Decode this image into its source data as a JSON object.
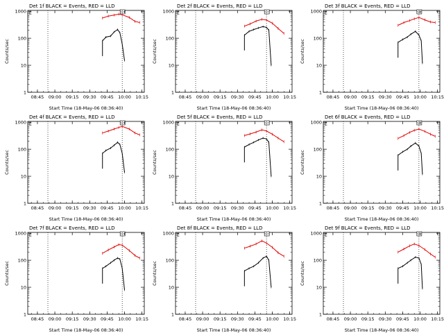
{
  "figure": {
    "xlabel": "Start Time (18-May-06 08:36:40)",
    "ylabel": "Counts/sec",
    "legend_marker": "E"
  },
  "colors": {
    "events": "#000000",
    "lld": "#e00000",
    "axes": "#000000"
  },
  "chart_data": [
    {
      "type": "line",
      "title": "Det 1f BLACK = Events, RED = LLD",
      "x_ticks": [
        "08:45",
        "09:00",
        "09:15",
        "09:30",
        "09:45",
        "10:00",
        "10:15"
      ],
      "y_ticks": [
        "1",
        "10",
        "100",
        "1000"
      ],
      "yscale": "log",
      "ylim": [
        1,
        1000
      ],
      "series": [
        {
          "name": "Events",
          "x": [
            "09:41",
            "09:44",
            "09:48",
            "09:51",
            "09:54",
            "09:56",
            "09:58",
            "10:00"
          ],
          "y": [
            80,
            110,
            120,
            170,
            210,
            160,
            60,
            15
          ]
        },
        {
          "name": "LLD",
          "x": [
            "09:41",
            "09:46",
            "09:51",
            "09:55",
            "09:58",
            "10:04",
            "10:09",
            "10:13"
          ],
          "y": [
            560,
            660,
            720,
            780,
            740,
            590,
            420,
            380
          ]
        }
      ]
    },
    {
      "type": "line",
      "title": "Det 2f BLACK = Events, RED = LLD",
      "x_ticks": [
        "08:45",
        "09:00",
        "09:15",
        "09:30",
        "09:45",
        "10:00",
        "10:15"
      ],
      "y_ticks": [
        "1",
        "10",
        "100",
        "1000"
      ],
      "yscale": "log",
      "ylim": [
        1,
        1000
      ],
      "series": [
        {
          "name": "Events",
          "x": [
            "09:36",
            "09:40",
            "09:44",
            "09:48",
            "09:52",
            "09:55",
            "09:57",
            "09:59"
          ],
          "y": [
            130,
            180,
            210,
            240,
            270,
            250,
            200,
            10
          ]
        },
        {
          "name": "LLD",
          "x": [
            "09:36",
            "09:41",
            "09:46",
            "09:51",
            "09:55",
            "10:00",
            "10:05",
            "10:10"
          ],
          "y": [
            280,
            340,
            430,
            500,
            470,
            360,
            230,
            150
          ]
        }
      ]
    },
    {
      "type": "line",
      "title": "Det 3f BLACK = Events, RED = LLD",
      "x_ticks": [
        "08:45",
        "09:00",
        "09:15",
        "09:30",
        "09:45",
        "10:00",
        "10:15"
      ],
      "y_ticks": [
        "1",
        "10",
        "100",
        "1000"
      ],
      "yscale": "log",
      "ylim": [
        1,
        1000
      ],
      "series": [
        {
          "name": "Events",
          "x": [
            "09:41",
            "09:45",
            "09:49",
            "09:52",
            "09:56",
            "09:59",
            "10:01",
            "10:02"
          ],
          "y": [
            70,
            90,
            110,
            140,
            180,
            130,
            80,
            12
          ]
        },
        {
          "name": "LLD",
          "x": [
            "09:41",
            "09:46",
            "09:51",
            "09:55",
            "09:59",
            "10:04",
            "10:09",
            "10:13"
          ],
          "y": [
            300,
            380,
            450,
            520,
            590,
            480,
            400,
            380
          ]
        }
      ]
    },
    {
      "type": "line",
      "title": "Det 4f BLACK = Events, RED = LLD",
      "x_ticks": [
        "08:45",
        "09:00",
        "09:15",
        "09:30",
        "09:45",
        "10:00",
        "10:15"
      ],
      "y_ticks": [
        "1",
        "10",
        "100",
        "1000"
      ],
      "yscale": "log",
      "ylim": [
        1,
        1000
      ],
      "series": [
        {
          "name": "Events",
          "x": [
            "09:41",
            "09:44",
            "09:48",
            "09:51",
            "09:54",
            "09:56",
            "09:58",
            "10:00"
          ],
          "y": [
            70,
            90,
            110,
            140,
            180,
            150,
            70,
            14
          ]
        },
        {
          "name": "LLD",
          "x": [
            "09:41",
            "09:46",
            "09:51",
            "09:55",
            "09:58",
            "10:04",
            "10:09",
            "10:13"
          ],
          "y": [
            400,
            470,
            560,
            640,
            700,
            560,
            400,
            340
          ]
        }
      ]
    },
    {
      "type": "line",
      "title": "Det 5f BLACK = Events, RED = LLD",
      "x_ticks": [
        "08:45",
        "09:00",
        "09:15",
        "09:30",
        "09:45",
        "10:00",
        "10:15"
      ],
      "y_ticks": [
        "1",
        "10",
        "100",
        "1000"
      ],
      "yscale": "log",
      "ylim": [
        1,
        1000
      ],
      "series": [
        {
          "name": "Events",
          "x": [
            "09:36",
            "09:40",
            "09:44",
            "09:48",
            "09:52",
            "09:55",
            "09:57",
            "09:59"
          ],
          "y": [
            120,
            150,
            180,
            220,
            260,
            240,
            180,
            10
          ]
        },
        {
          "name": "LLD",
          "x": [
            "09:36",
            "09:41",
            "09:46",
            "09:51",
            "09:55",
            "10:00",
            "10:05",
            "10:10"
          ],
          "y": [
            320,
            370,
            430,
            520,
            470,
            360,
            260,
            190
          ]
        }
      ]
    },
    {
      "type": "line",
      "title": "Det 6f BLACK = Events, RED = LLD",
      "x_ticks": [
        "08:45",
        "09:00",
        "09:15",
        "09:30",
        "09:45",
        "10:00",
        "10:15"
      ],
      "y_ticks": [
        "1",
        "10",
        "100",
        "1000"
      ],
      "yscale": "log",
      "ylim": [
        1,
        1000
      ],
      "series": [
        {
          "name": "Events",
          "x": [
            "09:41",
            "09:45",
            "09:49",
            "09:52",
            "09:56",
            "09:59",
            "10:01",
            "10:02"
          ],
          "y": [
            60,
            80,
            100,
            130,
            170,
            130,
            70,
            12
          ]
        },
        {
          "name": "LLD",
          "x": [
            "09:41",
            "09:46",
            "09:51",
            "09:55",
            "09:59",
            "10:04",
            "10:09",
            "10:13"
          ],
          "y": [
            250,
            320,
            420,
            500,
            560,
            460,
            360,
            300
          ]
        }
      ]
    },
    {
      "type": "line",
      "title": "Det 7f BLACK = Events, RED = LLD",
      "x_ticks": [
        "08:45",
        "09:00",
        "09:15",
        "09:30",
        "09:45",
        "10:00",
        "10:15"
      ],
      "y_ticks": [
        "1",
        "10",
        "100",
        "1000"
      ],
      "yscale": "log",
      "ylim": [
        1,
        1000
      ],
      "series": [
        {
          "name": "Events",
          "x": [
            "09:41",
            "09:44",
            "09:48",
            "09:51",
            "09:54",
            "09:56",
            "09:58",
            "10:00"
          ],
          "y": [
            50,
            60,
            80,
            100,
            120,
            110,
            50,
            8
          ]
        },
        {
          "name": "LLD",
          "x": [
            "09:41",
            "09:46",
            "09:51",
            "09:55",
            "09:58",
            "10:04",
            "10:09",
            "10:13"
          ],
          "y": [
            180,
            240,
            310,
            380,
            360,
            230,
            150,
            120
          ]
        }
      ]
    },
    {
      "type": "line",
      "title": "Det 8f BLACK = Events, RED = LLD",
      "x_ticks": [
        "08:45",
        "09:00",
        "09:15",
        "09:30",
        "09:45",
        "10:00",
        "10:15"
      ],
      "y_ticks": [
        "1",
        "10",
        "100",
        "1000"
      ],
      "yscale": "log",
      "ylim": [
        1,
        1000
      ],
      "series": [
        {
          "name": "Events",
          "x": [
            "09:36",
            "09:40",
            "09:44",
            "09:48",
            "09:52",
            "09:55",
            "09:57",
            "09:59"
          ],
          "y": [
            40,
            50,
            60,
            80,
            120,
            140,
            100,
            10
          ]
        },
        {
          "name": "LLD",
          "x": [
            "09:36",
            "09:41",
            "09:46",
            "09:51",
            "09:55",
            "10:00",
            "10:05",
            "10:10"
          ],
          "y": [
            280,
            330,
            400,
            520,
            430,
            300,
            190,
            140
          ]
        }
      ]
    },
    {
      "type": "line",
      "title": "Det 9f BLACK = Events, RED = LLD",
      "x_ticks": [
        "08:45",
        "09:00",
        "09:15",
        "09:30",
        "09:45",
        "10:00",
        "10:15"
      ],
      "y_ticks": [
        "1",
        "10",
        "100",
        "1000"
      ],
      "yscale": "log",
      "ylim": [
        1,
        1000
      ],
      "series": [
        {
          "name": "Events",
          "x": [
            "09:41",
            "09:45",
            "09:49",
            "09:52",
            "09:56",
            "09:59",
            "10:01",
            "10:02"
          ],
          "y": [
            50,
            60,
            80,
            100,
            130,
            120,
            70,
            9
          ]
        },
        {
          "name": "LLD",
          "x": [
            "09:41",
            "09:46",
            "09:51",
            "09:55",
            "09:59",
            "10:04",
            "10:09",
            "10:13"
          ],
          "y": [
            200,
            260,
            340,
            400,
            350,
            250,
            170,
            130
          ]
        }
      ]
    }
  ]
}
